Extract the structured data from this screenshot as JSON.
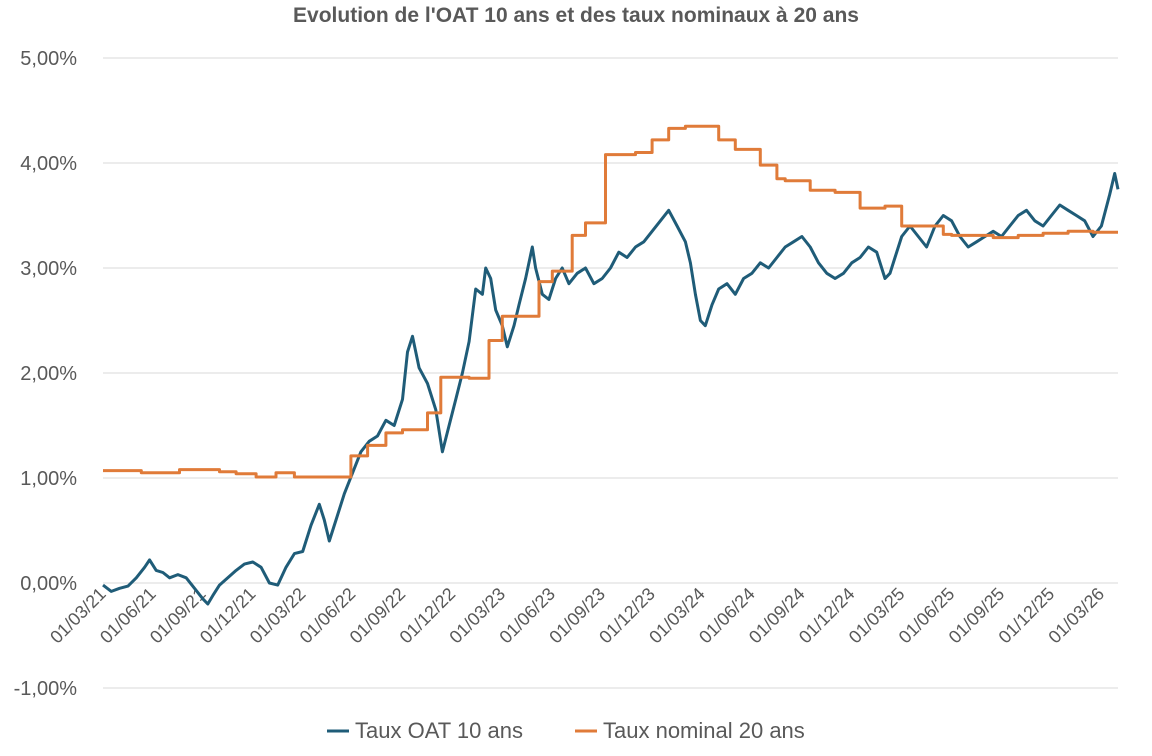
{
  "chart_data": {
    "type": "line",
    "title": "Evolution de l'OAT 10 ans et des taux nominaux à 20 ans",
    "xlabel": "",
    "ylabel": "",
    "ylim": [
      -1.0,
      5.0
    ],
    "y_ticks": [
      5.0,
      4.0,
      3.0,
      2.0,
      1.0,
      0.0,
      -1.0
    ],
    "y_tick_labels": [
      "5,00%",
      "4,00%",
      "3,00%",
      "2,00%",
      "1,00%",
      "0,00%",
      "-1,00%"
    ],
    "x_tick_labels": [
      "01/03/21",
      "01/06/21",
      "01/09/21",
      "01/12/21",
      "01/03/22",
      "01/06/22",
      "01/09/22",
      "01/12/22",
      "01/03/23",
      "01/06/23",
      "01/09/23",
      "01/12/23",
      "01/03/24",
      "01/06/24",
      "01/09/24",
      "01/12/24",
      "01/03/25",
      "01/06/25",
      "01/09/25",
      "01/12/25",
      "01/03/26"
    ],
    "x_range_months": [
      0,
      61
    ],
    "grid": true,
    "legend_position": "bottom",
    "series": [
      {
        "name": "Taux OAT 10 ans",
        "color": "#1F5C78",
        "points": [
          [
            0,
            -0.02
          ],
          [
            0.5,
            -0.08
          ],
          [
            1,
            -0.05
          ],
          [
            1.5,
            -0.03
          ],
          [
            2,
            0.05
          ],
          [
            2.5,
            0.15
          ],
          [
            2.8,
            0.22
          ],
          [
            3.2,
            0.12
          ],
          [
            3.6,
            0.1
          ],
          [
            4,
            0.05
          ],
          [
            4.5,
            0.08
          ],
          [
            5,
            0.05
          ],
          [
            5.5,
            -0.05
          ],
          [
            6,
            -0.15
          ],
          [
            6.3,
            -0.2
          ],
          [
            6.6,
            -0.12
          ],
          [
            7,
            -0.02
          ],
          [
            7.5,
            0.05
          ],
          [
            8,
            0.12
          ],
          [
            8.5,
            0.18
          ],
          [
            9,
            0.2
          ],
          [
            9.5,
            0.15
          ],
          [
            10,
            0.0
          ],
          [
            10.5,
            -0.02
          ],
          [
            11,
            0.15
          ],
          [
            11.5,
            0.28
          ],
          [
            12,
            0.3
          ],
          [
            12.5,
            0.55
          ],
          [
            13,
            0.75
          ],
          [
            13.3,
            0.6
          ],
          [
            13.6,
            0.4
          ],
          [
            14,
            0.6
          ],
          [
            14.5,
            0.85
          ],
          [
            15,
            1.05
          ],
          [
            15.5,
            1.25
          ],
          [
            16,
            1.35
          ],
          [
            16.5,
            1.4
          ],
          [
            17,
            1.55
          ],
          [
            17.5,
            1.5
          ],
          [
            18,
            1.75
          ],
          [
            18.3,
            2.2
          ],
          [
            18.6,
            2.35
          ],
          [
            19,
            2.05
          ],
          [
            19.5,
            1.9
          ],
          [
            20,
            1.65
          ],
          [
            20.4,
            1.25
          ],
          [
            20.8,
            1.5
          ],
          [
            21.2,
            1.75
          ],
          [
            21.6,
            2.0
          ],
          [
            22,
            2.3
          ],
          [
            22.4,
            2.8
          ],
          [
            22.8,
            2.75
          ],
          [
            23,
            3.0
          ],
          [
            23.3,
            2.9
          ],
          [
            23.6,
            2.6
          ],
          [
            24,
            2.45
          ],
          [
            24.3,
            2.25
          ],
          [
            24.7,
            2.45
          ],
          [
            25,
            2.65
          ],
          [
            25.4,
            2.9
          ],
          [
            25.8,
            3.2
          ],
          [
            26,
            3.0
          ],
          [
            26.4,
            2.75
          ],
          [
            26.8,
            2.7
          ],
          [
            27.2,
            2.9
          ],
          [
            27.6,
            3.0
          ],
          [
            28,
            2.85
          ],
          [
            28.5,
            2.95
          ],
          [
            29,
            3.0
          ],
          [
            29.5,
            2.85
          ],
          [
            30,
            2.9
          ],
          [
            30.5,
            3.0
          ],
          [
            31,
            3.15
          ],
          [
            31.5,
            3.1
          ],
          [
            32,
            3.2
          ],
          [
            32.5,
            3.25
          ],
          [
            33,
            3.35
          ],
          [
            33.5,
            3.45
          ],
          [
            34,
            3.55
          ],
          [
            34.5,
            3.4
          ],
          [
            35,
            3.25
          ],
          [
            35.3,
            3.05
          ],
          [
            35.6,
            2.75
          ],
          [
            35.9,
            2.5
          ],
          [
            36.2,
            2.45
          ],
          [
            36.6,
            2.65
          ],
          [
            37,
            2.8
          ],
          [
            37.5,
            2.85
          ],
          [
            38,
            2.75
          ],
          [
            38.5,
            2.9
          ],
          [
            39,
            2.95
          ],
          [
            39.5,
            3.05
          ],
          [
            40,
            3.0
          ],
          [
            40.5,
            3.1
          ],
          [
            41,
            3.2
          ],
          [
            41.5,
            3.25
          ],
          [
            42,
            3.3
          ],
          [
            42.5,
            3.2
          ],
          [
            43,
            3.05
          ],
          [
            43.5,
            2.95
          ],
          [
            44,
            2.9
          ],
          [
            44.5,
            2.95
          ],
          [
            45,
            3.05
          ],
          [
            45.5,
            3.1
          ],
          [
            46,
            3.2
          ],
          [
            46.5,
            3.15
          ],
          [
            47,
            2.9
          ],
          [
            47.3,
            2.95
          ],
          [
            47.6,
            3.1
          ],
          [
            48,
            3.3
          ],
          [
            48.5,
            3.4
          ],
          [
            49,
            3.3
          ],
          [
            49.5,
            3.2
          ],
          [
            50,
            3.4
          ],
          [
            50.5,
            3.5
          ],
          [
            51,
            3.45
          ],
          [
            51.5,
            3.3
          ],
          [
            52,
            3.2
          ],
          [
            52.5,
            3.25
          ],
          [
            53,
            3.3
          ],
          [
            53.5,
            3.35
          ],
          [
            54,
            3.3
          ],
          [
            54.5,
            3.4
          ],
          [
            55,
            3.5
          ],
          [
            55.5,
            3.55
          ],
          [
            56,
            3.45
          ],
          [
            56.5,
            3.4
          ],
          [
            57,
            3.5
          ],
          [
            57.5,
            3.6
          ],
          [
            58,
            3.55
          ],
          [
            58.5,
            3.5
          ],
          [
            59,
            3.45
          ],
          [
            59.5,
            3.3
          ],
          [
            60,
            3.4
          ],
          [
            60.5,
            3.7
          ],
          [
            60.8,
            3.9
          ],
          [
            61,
            3.75
          ]
        ]
      },
      {
        "name": "Taux nominal 20 ans",
        "color": "#E07B39",
        "points": [
          [
            0,
            1.07
          ],
          [
            2.3,
            1.07
          ],
          [
            2.3,
            1.05
          ],
          [
            4.6,
            1.05
          ],
          [
            4.6,
            1.08
          ],
          [
            7,
            1.08
          ],
          [
            7,
            1.06
          ],
          [
            8,
            1.06
          ],
          [
            8,
            1.04
          ],
          [
            9.2,
            1.04
          ],
          [
            9.2,
            1.01
          ],
          [
            10.4,
            1.01
          ],
          [
            10.4,
            1.05
          ],
          [
            11.5,
            1.05
          ],
          [
            11.5,
            1.01
          ],
          [
            14.9,
            1.01
          ],
          [
            14.9,
            1.21
          ],
          [
            15.9,
            1.21
          ],
          [
            15.9,
            1.31
          ],
          [
            17,
            1.31
          ],
          [
            17,
            1.43
          ],
          [
            18,
            1.43
          ],
          [
            18,
            1.46
          ],
          [
            19.5,
            1.46
          ],
          [
            19.5,
            1.62
          ],
          [
            20.3,
            1.62
          ],
          [
            20.3,
            1.96
          ],
          [
            22,
            1.96
          ],
          [
            22,
            1.95
          ],
          [
            23.2,
            1.95
          ],
          [
            23.2,
            2.31
          ],
          [
            24,
            2.31
          ],
          [
            24,
            2.54
          ],
          [
            26.2,
            2.54
          ],
          [
            26.2,
            2.87
          ],
          [
            27,
            2.87
          ],
          [
            27,
            2.97
          ],
          [
            28.2,
            2.97
          ],
          [
            28.2,
            3.31
          ],
          [
            29,
            3.31
          ],
          [
            29,
            3.43
          ],
          [
            30.2,
            3.43
          ],
          [
            30.2,
            4.08
          ],
          [
            32,
            4.08
          ],
          [
            32,
            4.1
          ],
          [
            33,
            4.1
          ],
          [
            33,
            4.22
          ],
          [
            34,
            4.22
          ],
          [
            34,
            4.33
          ],
          [
            35,
            4.33
          ],
          [
            35,
            4.35
          ],
          [
            37,
            4.35
          ],
          [
            37,
            4.22
          ],
          [
            38,
            4.22
          ],
          [
            38,
            4.13
          ],
          [
            39.5,
            4.13
          ],
          [
            39.5,
            3.98
          ],
          [
            40.5,
            3.98
          ],
          [
            40.5,
            3.85
          ],
          [
            41,
            3.85
          ],
          [
            41,
            3.83
          ],
          [
            42.5,
            3.83
          ],
          [
            42.5,
            3.74
          ],
          [
            44,
            3.74
          ],
          [
            44,
            3.72
          ],
          [
            45.5,
            3.72
          ],
          [
            45.5,
            3.57
          ],
          [
            47,
            3.57
          ],
          [
            47,
            3.59
          ],
          [
            48,
            3.59
          ],
          [
            48,
            3.4
          ],
          [
            50.5,
            3.4
          ],
          [
            50.5,
            3.32
          ],
          [
            51,
            3.32
          ],
          [
            51,
            3.31
          ],
          [
            53.5,
            3.31
          ],
          [
            53.5,
            3.29
          ],
          [
            55,
            3.29
          ],
          [
            55,
            3.31
          ],
          [
            56.5,
            3.31
          ],
          [
            56.5,
            3.33
          ],
          [
            58,
            3.33
          ],
          [
            58,
            3.35
          ],
          [
            59.5,
            3.35
          ],
          [
            59.5,
            3.34
          ],
          [
            61,
            3.34
          ]
        ]
      }
    ]
  }
}
